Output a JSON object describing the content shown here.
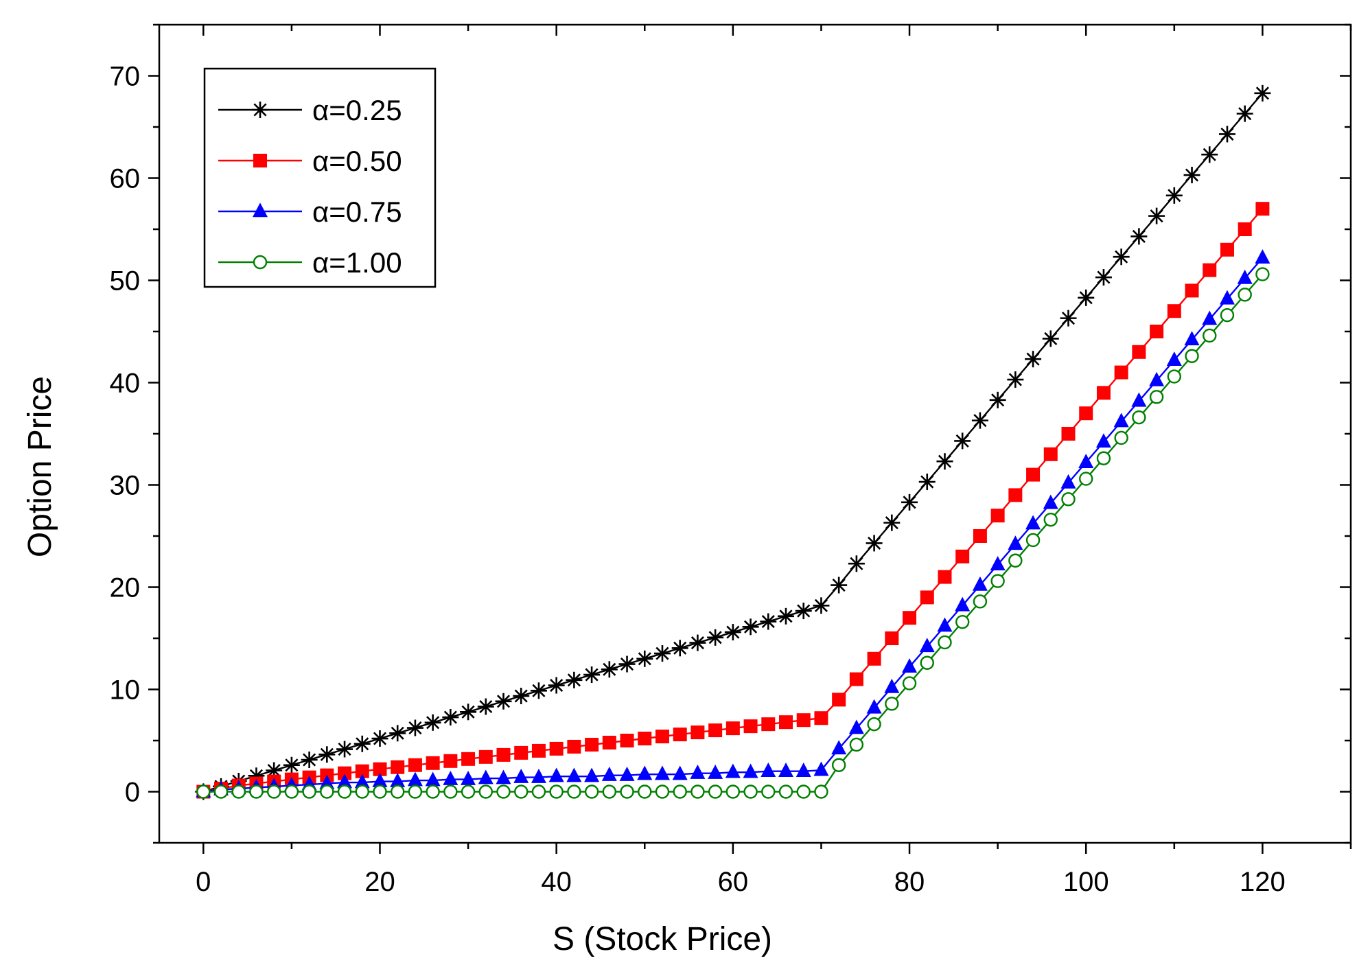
{
  "chart_data": {
    "type": "line",
    "title": "",
    "xlabel": "S (Stock Price)",
    "ylabel": "Option Price",
    "xlim": [
      -5,
      130
    ],
    "ylim": [
      -5,
      75
    ],
    "xticks": [
      0,
      20,
      40,
      60,
      80,
      100,
      120
    ],
    "yticks": [
      0,
      10,
      20,
      30,
      40,
      50,
      60,
      70
    ],
    "x_minor_step": 10,
    "y_minor_step": 5,
    "grid": false,
    "legend_position": "top-left",
    "x": [
      0,
      2,
      4,
      6,
      8,
      10,
      12,
      14,
      16,
      18,
      20,
      22,
      24,
      26,
      28,
      30,
      32,
      34,
      36,
      38,
      40,
      42,
      44,
      46,
      48,
      50,
      52,
      54,
      56,
      58,
      60,
      62,
      64,
      66,
      68,
      70,
      72,
      74,
      76,
      78,
      80,
      82,
      84,
      86,
      88,
      90,
      92,
      94,
      96,
      98,
      100,
      102,
      104,
      106,
      108,
      110,
      112,
      114,
      116,
      118,
      120
    ],
    "series": [
      {
        "name": "α=0.25",
        "color": "#000000",
        "marker": "asterisk",
        "values": [
          0.0,
          0.52,
          1.04,
          1.56,
          2.08,
          2.6,
          3.12,
          3.64,
          4.16,
          4.68,
          5.2,
          5.72,
          6.24,
          6.76,
          7.28,
          7.8,
          8.32,
          8.84,
          9.36,
          9.88,
          10.4,
          10.92,
          11.44,
          11.96,
          12.48,
          13.0,
          13.52,
          14.04,
          14.56,
          15.08,
          15.6,
          16.12,
          16.64,
          17.16,
          17.68,
          18.2,
          20.2,
          22.3,
          24.3,
          26.3,
          28.3,
          30.3,
          32.3,
          34.3,
          36.3,
          38.3,
          40.3,
          42.3,
          44.3,
          46.3,
          48.3,
          50.3,
          52.3,
          54.3,
          56.3,
          58.3,
          60.3,
          62.3,
          64.3,
          66.3,
          68.3
        ]
      },
      {
        "name": "α=0.50",
        "color": "#ff0000",
        "marker": "square",
        "values": [
          0.0,
          0.3,
          0.6,
          0.8,
          1.0,
          1.2,
          1.4,
          1.6,
          1.8,
          2.0,
          2.2,
          2.4,
          2.6,
          2.8,
          3.0,
          3.2,
          3.4,
          3.6,
          3.8,
          4.0,
          4.2,
          4.4,
          4.6,
          4.8,
          5.0,
          5.2,
          5.4,
          5.6,
          5.8,
          6.0,
          6.2,
          6.4,
          6.6,
          6.8,
          7.0,
          7.2,
          9.0,
          11.0,
          13.0,
          15.0,
          17.0,
          19.0,
          21.0,
          23.0,
          25.0,
          27.0,
          29.0,
          31.0,
          33.0,
          35.0,
          37.0,
          39.0,
          41.0,
          43.0,
          45.0,
          47.0,
          49.0,
          51.0,
          53.0,
          55.0,
          57.0
        ]
      },
      {
        "name": "α=0.75",
        "color": "#0000ff",
        "marker": "triangle",
        "values": [
          0.0,
          0.2,
          0.3,
          0.4,
          0.5,
          0.6,
          0.7,
          0.8,
          0.9,
          0.9,
          1.0,
          1.0,
          1.1,
          1.1,
          1.2,
          1.2,
          1.3,
          1.3,
          1.4,
          1.4,
          1.5,
          1.5,
          1.5,
          1.6,
          1.6,
          1.7,
          1.7,
          1.7,
          1.8,
          1.8,
          1.9,
          1.9,
          2.0,
          2.0,
          2.0,
          2.1,
          4.2,
          6.2,
          8.2,
          10.2,
          12.2,
          14.2,
          16.2,
          18.2,
          20.2,
          22.2,
          24.2,
          26.2,
          28.2,
          30.2,
          32.2,
          34.2,
          36.2,
          38.2,
          40.2,
          42.2,
          44.2,
          46.2,
          48.2,
          50.2,
          52.2
        ]
      },
      {
        "name": "α=1.00",
        "color": "#008000",
        "marker": "open-circle",
        "values": [
          0,
          0,
          0,
          0,
          0,
          0,
          0,
          0,
          0,
          0,
          0,
          0,
          0,
          0,
          0,
          0,
          0,
          0,
          0,
          0,
          0,
          0,
          0,
          0,
          0,
          0,
          0,
          0,
          0,
          0,
          0,
          0,
          0,
          0,
          0,
          0,
          2.6,
          4.6,
          6.6,
          8.6,
          10.6,
          12.6,
          14.6,
          16.6,
          18.6,
          20.6,
          22.6,
          24.6,
          26.6,
          28.6,
          30.6,
          32.6,
          34.6,
          36.6,
          38.6,
          40.6,
          42.6,
          44.6,
          46.6,
          48.6,
          50.6
        ]
      }
    ]
  }
}
